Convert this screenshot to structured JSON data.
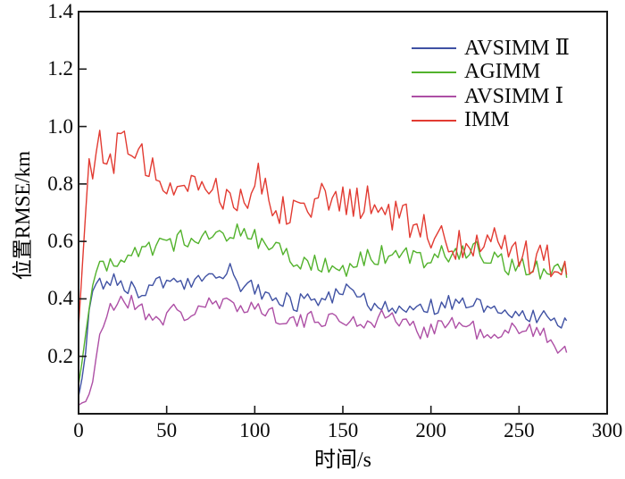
{
  "figure": {
    "background": "#ffffff",
    "frame_color": "#1a1a1a"
  },
  "chart_data": {
    "type": "line",
    "title": "",
    "xlabel": "时间/s",
    "ylabel": "位置RMSE/km",
    "xlim": [
      0,
      300
    ],
    "ylim": [
      0,
      1.4
    ],
    "x_ticks": [
      0,
      50,
      100,
      150,
      200,
      250,
      300
    ],
    "x_tick_labels": [
      "0",
      "50",
      "100",
      "150",
      "200",
      "250",
      "300"
    ],
    "y_ticks": [
      0.2,
      0.4,
      0.6,
      0.8,
      1.0,
      1.2,
      1.4
    ],
    "y_tick_labels": [
      "0.2",
      "0.4",
      "0.6",
      "0.8",
      "1.0",
      "1.2",
      "1.4"
    ],
    "grid": false,
    "legend_position": "top-right-inside",
    "t_end": 277,
    "sample_step_s": 2,
    "series": [
      {
        "name": "AVSIMM Ⅱ",
        "color": "#3f51a3",
        "noise": {
          "fast": 0.03,
          "slow": 0.022,
          "seed": 8
        },
        "anchors": [
          [
            0,
            0.06
          ],
          [
            3,
            0.15
          ],
          [
            6,
            0.35
          ],
          [
            9,
            0.46
          ],
          [
            14,
            0.46
          ],
          [
            20,
            0.5
          ],
          [
            26,
            0.46
          ],
          [
            33,
            0.44
          ],
          [
            40,
            0.45
          ],
          [
            48,
            0.46
          ],
          [
            55,
            0.47
          ],
          [
            62,
            0.45
          ],
          [
            70,
            0.46
          ],
          [
            78,
            0.48
          ],
          [
            85,
            0.5
          ],
          [
            92,
            0.46
          ],
          [
            100,
            0.44
          ],
          [
            108,
            0.42
          ],
          [
            115,
            0.4
          ],
          [
            122,
            0.38
          ],
          [
            130,
            0.4
          ],
          [
            140,
            0.41
          ],
          [
            150,
            0.43
          ],
          [
            158,
            0.4
          ],
          [
            166,
            0.38
          ],
          [
            175,
            0.36
          ],
          [
            185,
            0.36
          ],
          [
            195,
            0.37
          ],
          [
            205,
            0.39
          ],
          [
            213,
            0.4
          ],
          [
            222,
            0.38
          ],
          [
            232,
            0.36
          ],
          [
            242,
            0.35
          ],
          [
            252,
            0.36
          ],
          [
            262,
            0.35
          ],
          [
            270,
            0.34
          ],
          [
            277,
            0.33
          ]
        ]
      },
      {
        "name": "AGIMM",
        "color": "#52b22c",
        "noise": {
          "fast": 0.035,
          "slow": 0.03,
          "seed": 47
        },
        "anchors": [
          [
            0,
            0.1
          ],
          [
            4,
            0.28
          ],
          [
            8,
            0.45
          ],
          [
            12,
            0.52
          ],
          [
            20,
            0.54
          ],
          [
            30,
            0.55
          ],
          [
            40,
            0.58
          ],
          [
            50,
            0.6
          ],
          [
            60,
            0.6
          ],
          [
            70,
            0.62
          ],
          [
            80,
            0.62
          ],
          [
            90,
            0.63
          ],
          [
            100,
            0.62
          ],
          [
            108,
            0.6
          ],
          [
            115,
            0.58
          ],
          [
            125,
            0.56
          ],
          [
            135,
            0.54
          ],
          [
            145,
            0.52
          ],
          [
            155,
            0.54
          ],
          [
            165,
            0.56
          ],
          [
            175,
            0.56
          ],
          [
            185,
            0.55
          ],
          [
            195,
            0.54
          ],
          [
            205,
            0.58
          ],
          [
            215,
            0.56
          ],
          [
            225,
            0.56
          ],
          [
            235,
            0.54
          ],
          [
            245,
            0.53
          ],
          [
            255,
            0.52
          ],
          [
            265,
            0.5
          ],
          [
            277,
            0.48
          ]
        ]
      },
      {
        "name": "AVSIMM Ⅰ",
        "color": "#ad4fa5",
        "noise": {
          "fast": 0.03,
          "slow": 0.025,
          "seed": 21
        },
        "anchors": [
          [
            0,
            0.03
          ],
          [
            5,
            0.05
          ],
          [
            9,
            0.12
          ],
          [
            13,
            0.28
          ],
          [
            18,
            0.35
          ],
          [
            24,
            0.39
          ],
          [
            30,
            0.38
          ],
          [
            38,
            0.36
          ],
          [
            46,
            0.35
          ],
          [
            54,
            0.38
          ],
          [
            62,
            0.36
          ],
          [
            70,
            0.39
          ],
          [
            78,
            0.38
          ],
          [
            86,
            0.37
          ],
          [
            95,
            0.36
          ],
          [
            105,
            0.35
          ],
          [
            115,
            0.34
          ],
          [
            125,
            0.33
          ],
          [
            135,
            0.35
          ],
          [
            145,
            0.34
          ],
          [
            155,
            0.33
          ],
          [
            165,
            0.32
          ],
          [
            175,
            0.33
          ],
          [
            185,
            0.32
          ],
          [
            195,
            0.31
          ],
          [
            205,
            0.33
          ],
          [
            215,
            0.32
          ],
          [
            225,
            0.29
          ],
          [
            233,
            0.26
          ],
          [
            240,
            0.27
          ],
          [
            248,
            0.3
          ],
          [
            256,
            0.28
          ],
          [
            264,
            0.26
          ],
          [
            270,
            0.24
          ],
          [
            277,
            0.23
          ]
        ]
      },
      {
        "name": "IMM",
        "color": "#e23b32",
        "noise": {
          "fast": 0.065,
          "slow": 0.045,
          "seed": 12
        },
        "anchors": [
          [
            0,
            0.3
          ],
          [
            3,
            0.62
          ],
          [
            6,
            0.85
          ],
          [
            9,
            0.88
          ],
          [
            11,
            1.08
          ],
          [
            13,
            0.86
          ],
          [
            18,
            0.88
          ],
          [
            22,
            0.92
          ],
          [
            25,
            1.03
          ],
          [
            28,
            0.86
          ],
          [
            35,
            0.87
          ],
          [
            45,
            0.84
          ],
          [
            55,
            0.83
          ],
          [
            65,
            0.8
          ],
          [
            75,
            0.8
          ],
          [
            85,
            0.78
          ],
          [
            95,
            0.76
          ],
          [
            103,
            0.86
          ],
          [
            110,
            0.76
          ],
          [
            120,
            0.74
          ],
          [
            130,
            0.73
          ],
          [
            140,
            0.72
          ],
          [
            150,
            0.7
          ],
          [
            160,
            0.7
          ],
          [
            170,
            0.7
          ],
          [
            180,
            0.66
          ],
          [
            190,
            0.64
          ],
          [
            200,
            0.63
          ],
          [
            210,
            0.61
          ],
          [
            220,
            0.6
          ],
          [
            230,
            0.59
          ],
          [
            240,
            0.58
          ],
          [
            250,
            0.57
          ],
          [
            260,
            0.55
          ],
          [
            268,
            0.52
          ],
          [
            277,
            0.5
          ]
        ]
      }
    ]
  }
}
